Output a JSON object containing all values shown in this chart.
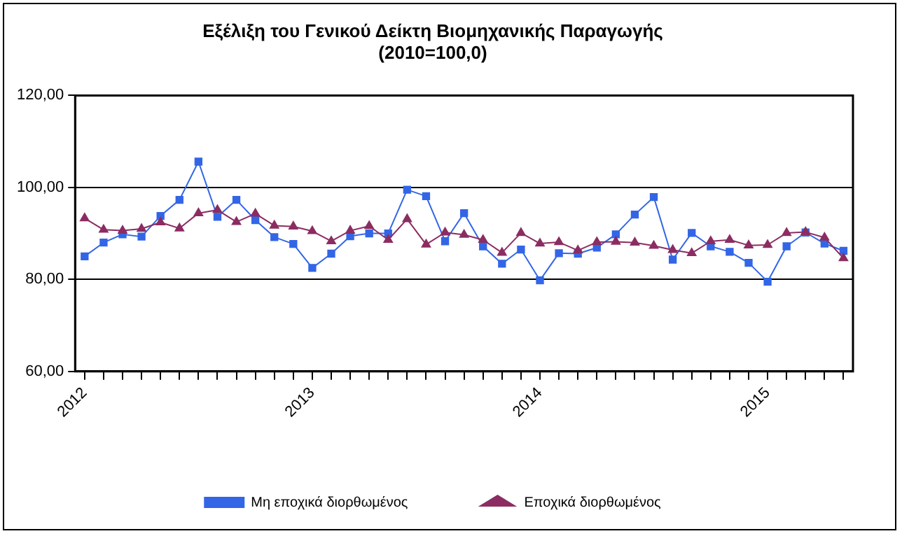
{
  "chart_data": {
    "type": "line",
    "title": "Εξέλιξη του Γενικού Δείκτη Βιομηχανικής Παραγωγής",
    "subtitle": "(2010=100,0)",
    "categories": [
      "2012",
      null,
      null,
      null,
      null,
      null,
      null,
      null,
      null,
      null,
      null,
      null,
      "2013",
      null,
      null,
      null,
      null,
      null,
      null,
      null,
      null,
      null,
      null,
      null,
      "2014",
      null,
      null,
      null,
      null,
      null,
      null,
      null,
      null,
      null,
      null,
      null,
      "2015",
      null,
      null,
      null,
      null
    ],
    "series": [
      {
        "name": "Μη εποχικά διορθωμένος",
        "color": "#3366e6",
        "marker": "square",
        "values": [
          85.0,
          88.0,
          89.8,
          89.3,
          93.8,
          97.3,
          105.6,
          93.6,
          97.3,
          92.9,
          89.2,
          87.7,
          82.5,
          85.6,
          89.4,
          90.0,
          90.0,
          99.5,
          98.1,
          88.3,
          94.4,
          87.2,
          83.4,
          86.5,
          79.8,
          85.7,
          85.6,
          86.9,
          89.8,
          94.1,
          97.9,
          84.3,
          90.1,
          87.2,
          86.0,
          83.6,
          79.5,
          87.2,
          90.2,
          87.8,
          86.2
        ]
      },
      {
        "name": "Εποχικά διορθωμένος",
        "color": "#8b2d62",
        "marker": "triangle",
        "values": [
          93.3,
          90.8,
          90.6,
          91.0,
          92.4,
          91.1,
          94.4,
          95.1,
          92.5,
          94.3,
          91.7,
          91.5,
          90.5,
          88.3,
          90.6,
          91.6,
          88.6,
          93.1,
          87.6,
          90.2,
          89.7,
          88.6,
          85.8,
          90.1,
          87.8,
          88.1,
          86.3,
          88.1,
          88.2,
          88.0,
          87.3,
          86.4,
          85.7,
          88.3,
          88.6,
          87.4,
          87.5,
          90.1,
          90.3,
          89.1,
          84.6
        ]
      }
    ],
    "ylim": [
      60,
      120
    ],
    "yticks": [
      {
        "value": 60,
        "label": "60,00"
      },
      {
        "value": 80,
        "label": "80,00"
      },
      {
        "value": 100,
        "label": "100,00"
      },
      {
        "value": 120,
        "label": "120,00"
      }
    ],
    "grid": "y",
    "legend": "bottom"
  }
}
